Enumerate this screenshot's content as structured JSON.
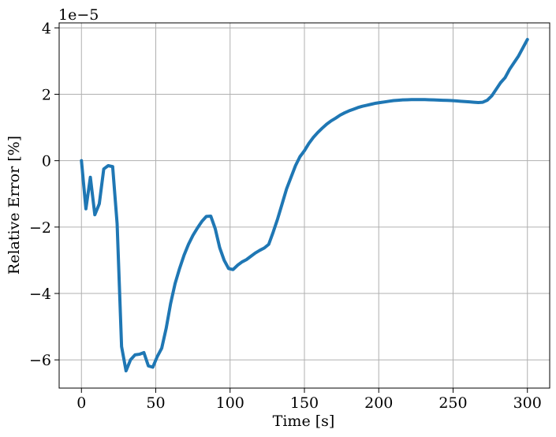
{
  "chart_data": {
    "type": "line",
    "title": "",
    "xlabel": "Time [s]",
    "ylabel": "Relative Error [%]",
    "y_offset_label": "1e−5",
    "xlim": [
      -15,
      315
    ],
    "ylim": [
      -6.85,
      4.15
    ],
    "x_ticks": [
      0,
      50,
      100,
      150,
      200,
      250,
      300
    ],
    "x_tick_labels": [
      "0",
      "50",
      "100",
      "150",
      "200",
      "250",
      "300"
    ],
    "y_ticks": [
      -6,
      -4,
      -2,
      0,
      2,
      4
    ],
    "y_tick_labels": [
      "−6",
      "−4",
      "−2",
      "0",
      "2",
      "4"
    ],
    "grid": true,
    "series": [
      {
        "color": "#1f77b4",
        "x": [
          0,
          3,
          6,
          9,
          12,
          15,
          18,
          21,
          24,
          27,
          30,
          33,
          36,
          39,
          42,
          45,
          48,
          51,
          54,
          57,
          60,
          63,
          66,
          69,
          72,
          75,
          78,
          81,
          84,
          87,
          90,
          93,
          96,
          99,
          102,
          105,
          108,
          111,
          114,
          117,
          120,
          123,
          126,
          129,
          132,
          135,
          138,
          141,
          144,
          147,
          150,
          153,
          156,
          159,
          162,
          165,
          168,
          171,
          174,
          177,
          180,
          183,
          186,
          189,
          192,
          195,
          198,
          201,
          204,
          207,
          210,
          213,
          216,
          219,
          222,
          225,
          228,
          231,
          234,
          237,
          240,
          243,
          246,
          249,
          252,
          255,
          258,
          261,
          264,
          267,
          270,
          273,
          276,
          279,
          282,
          285,
          288,
          291,
          294,
          297,
          300
        ],
        "y": [
          0.0,
          -1.45,
          -0.5,
          -1.63,
          -1.3,
          -0.25,
          -0.15,
          -0.18,
          -1.9,
          -5.6,
          -6.33,
          -6.0,
          -5.85,
          -5.83,
          -5.78,
          -6.18,
          -6.22,
          -5.9,
          -5.65,
          -5.05,
          -4.3,
          -3.7,
          -3.25,
          -2.85,
          -2.52,
          -2.25,
          -2.03,
          -1.83,
          -1.68,
          -1.67,
          -2.05,
          -2.62,
          -3.0,
          -3.25,
          -3.28,
          -3.15,
          -3.05,
          -2.98,
          -2.88,
          -2.78,
          -2.7,
          -2.63,
          -2.52,
          -2.15,
          -1.75,
          -1.3,
          -0.85,
          -0.5,
          -0.15,
          0.12,
          0.3,
          0.52,
          0.7,
          0.85,
          0.98,
          1.1,
          1.2,
          1.28,
          1.37,
          1.44,
          1.5,
          1.55,
          1.6,
          1.64,
          1.67,
          1.7,
          1.73,
          1.75,
          1.77,
          1.79,
          1.81,
          1.82,
          1.83,
          1.835,
          1.84,
          1.84,
          1.84,
          1.84,
          1.835,
          1.83,
          1.825,
          1.82,
          1.815,
          1.81,
          1.8,
          1.79,
          1.78,
          1.77,
          1.76,
          1.75,
          1.76,
          1.82,
          1.95,
          2.15,
          2.35,
          2.5,
          2.75,
          2.95,
          3.15,
          3.4,
          3.65
        ]
      }
    ]
  }
}
